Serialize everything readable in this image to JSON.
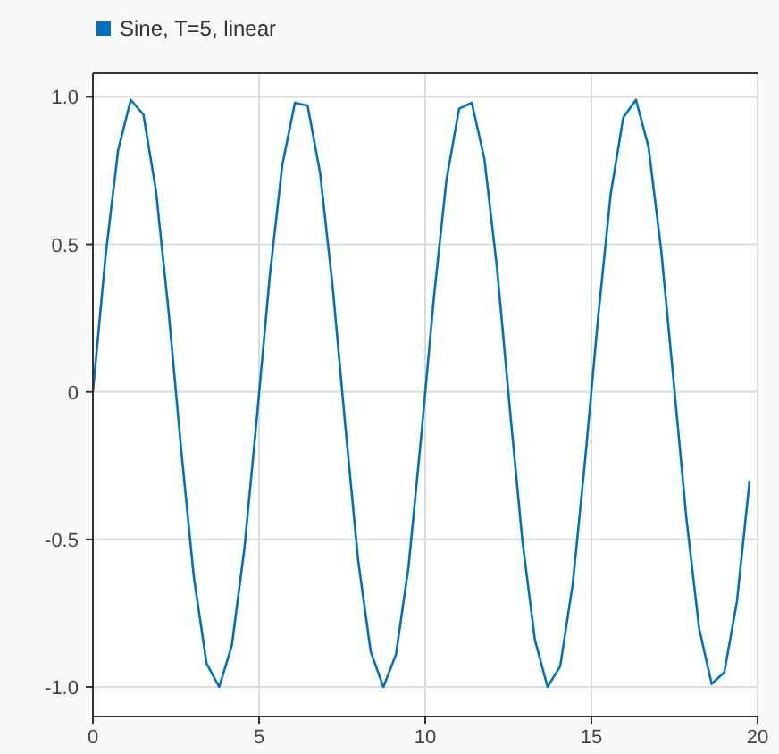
{
  "chart_data": {
    "type": "line",
    "x": [
      0,
      0.38,
      0.76,
      1.14,
      1.52,
      1.9,
      2.28,
      2.66,
      3.04,
      3.42,
      3.8,
      4.18,
      4.56,
      4.94,
      5.32,
      5.7,
      6.08,
      6.46,
      6.84,
      7.22,
      7.6,
      7.98,
      8.36,
      8.74,
      9.12,
      9.5,
      9.88,
      10.26,
      10.64,
      11.02,
      11.4,
      11.78,
      12.16,
      12.54,
      12.92,
      13.3,
      13.68,
      14.06,
      14.44,
      14.82,
      15.2,
      15.58,
      15.96,
      16.34,
      16.72,
      17.1,
      17.48,
      17.86,
      18.24,
      18.62,
      19,
      19.38,
      19.76
    ],
    "series": [
      {
        "name": "Sine, T=5, linear",
        "color": "#0072bd",
        "values": [
          0,
          0.46,
          0.82,
          0.99,
          0.94,
          0.68,
          0.27,
          -0.2,
          -0.63,
          -0.92,
          -1,
          -0.86,
          -0.53,
          -0.08,
          0.39,
          0.77,
          0.98,
          0.97,
          0.74,
          0.35,
          -0.12,
          -0.57,
          -0.88,
          -1,
          -0.89,
          -0.59,
          -0.15,
          0.32,
          0.72,
          0.96,
          0.98,
          0.79,
          0.42,
          -0.05,
          -0.5,
          -0.84,
          -1,
          -0.93,
          -0.65,
          -0.22,
          0.25,
          0.67,
          0.93,
          0.99,
          0.83,
          0.48,
          0.03,
          -0.43,
          -0.8,
          -0.99,
          -0.95,
          -0.71,
          -0.3
        ]
      }
    ],
    "xlim": [
      0,
      20
    ],
    "xticks": [
      0,
      5,
      10,
      15,
      20
    ],
    "ylim": [
      -1.1,
      1.08
    ],
    "yticks": [
      {
        "value": -1,
        "label": "-1.0"
      },
      {
        "value": -0.5,
        "label": "-0.5"
      },
      0,
      {
        "value": 0.5,
        "label": "0.5"
      },
      {
        "value": 1,
        "label": "1.0"
      }
    ],
    "grid": true,
    "legend": "top left",
    "marker": "none",
    "line_style": "solid"
  }
}
